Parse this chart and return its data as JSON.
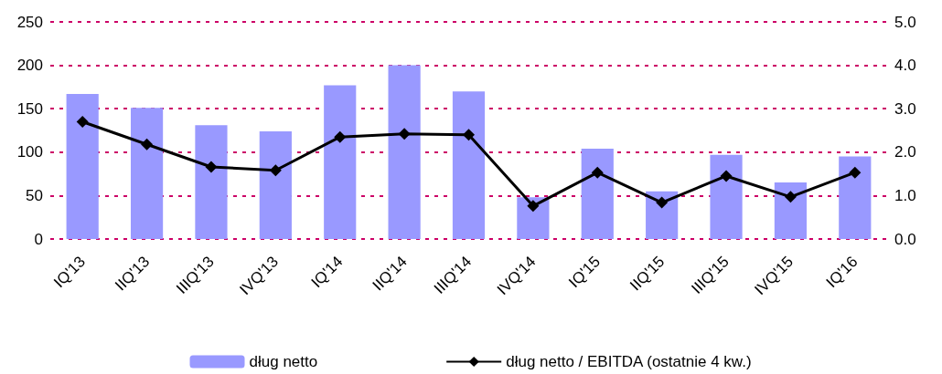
{
  "chart_data": {
    "type": "bar",
    "categories": [
      "IQ'13",
      "IIQ'13",
      "IIIQ'13",
      "IVQ'13",
      "IQ'14",
      "IIQ'14",
      "IIIQ'14",
      "IVQ'14",
      "IQ'15",
      "IIQ'15",
      "IIIQ'15",
      "IVQ'15",
      "IQ'16"
    ],
    "series": [
      {
        "name": "dług netto",
        "color": "#9999ff",
        "values": [
          167,
          151,
          131,
          124,
          177,
          200,
          170,
          48,
          104,
          55,
          97,
          65,
          95
        ]
      },
      {
        "name": "dług netto / EBITDA (ostatnie 4 kw.)",
        "type": "line",
        "axis": "y2",
        "color": "#000000",
        "marker": "diamond",
        "values": [
          2.7,
          2.18,
          1.66,
          1.58,
          2.35,
          2.42,
          2.4,
          0.76,
          1.53,
          0.84,
          1.45,
          0.97,
          1.53
        ]
      }
    ],
    "ylim": [
      0,
      250
    ],
    "yticks": [
      0,
      50,
      100,
      150,
      200,
      250
    ],
    "y2lim": [
      0,
      5
    ],
    "y2ticks": [
      {
        "value": 0,
        "label": "0.0"
      },
      {
        "value": 1,
        "label": "1.0"
      },
      {
        "value": 2,
        "label": "2.0"
      },
      {
        "value": 3,
        "label": "3.0"
      },
      {
        "value": 4,
        "label": "4.0"
      },
      {
        "value": 5,
        "label": "5.0"
      }
    ],
    "grid": "y",
    "legend": "bottom"
  }
}
